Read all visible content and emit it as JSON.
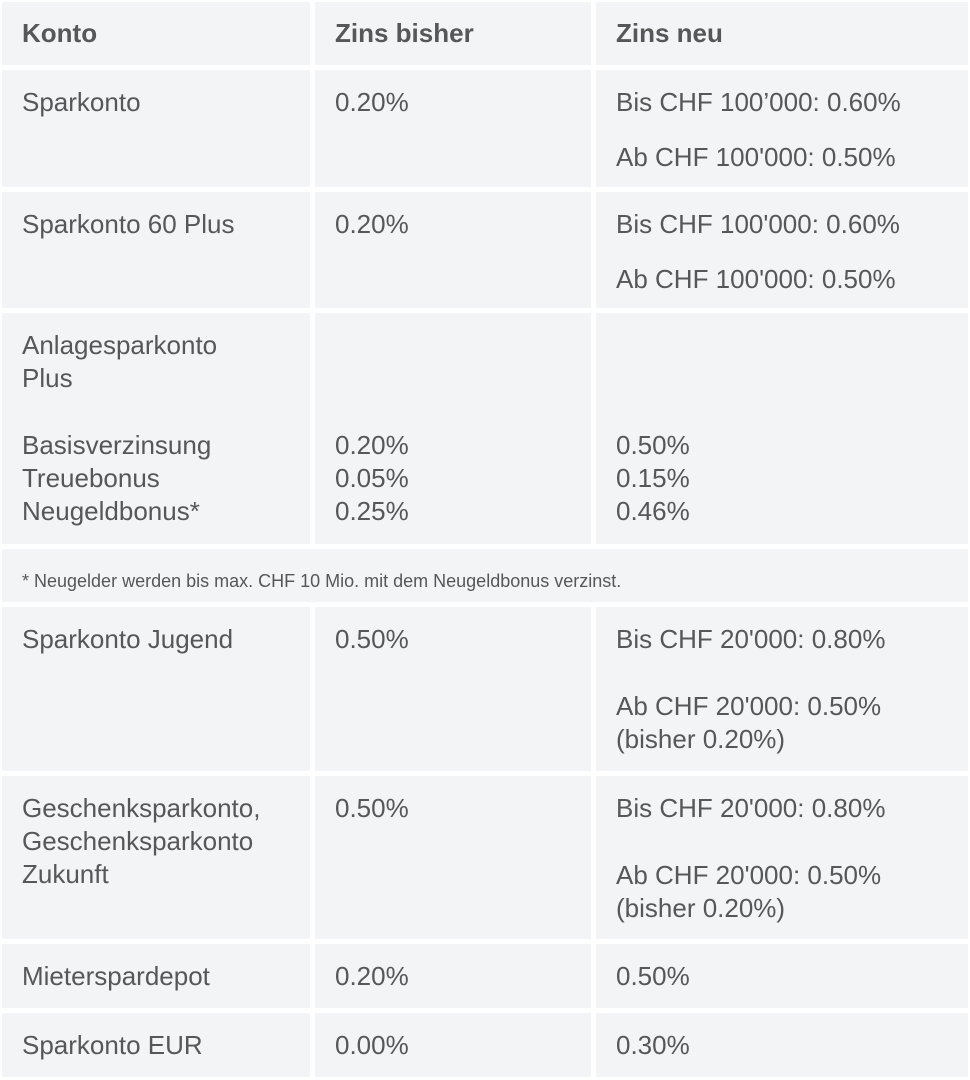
{
  "header": [
    "Konto",
    "Zins bisher",
    "Zins neu"
  ],
  "rows": [
    {
      "konto": [
        "Sparkonto"
      ],
      "bisher": [
        "0.20%"
      ],
      "neu": [
        "Bis CHF 100’000: 0.60%",
        "Ab CHF 100'000: 0.50%"
      ]
    },
    {
      "konto": [
        "Sparkonto 60 Plus"
      ],
      "bisher": [
        "0.20%"
      ],
      "neu": [
        "Bis CHF 100'000: 0.60%",
        "Ab CHF 100'000: 0.50%"
      ]
    },
    {
      "konto": [
        "Anlagesparkonto\nPlus",
        "Basisverzinsung\nTreuebonus\nNeugeldbonus*"
      ],
      "bisher": [
        "",
        "0.20%\n0.05%\n0.25%"
      ],
      "neu": [
        "",
        "0.50%\n0.15%\n0.46%"
      ]
    },
    {
      "konto": [
        "Sparkonto Jugend"
      ],
      "bisher": [
        "0.50%"
      ],
      "neu": [
        "Bis CHF 20'000: 0.80%",
        "Ab CHF 20'000: 0.50%\n(bisher 0.20%)"
      ]
    },
    {
      "konto": [
        "Geschenksparkonto,\nGeschenksparkonto\nZukunft"
      ],
      "bisher": [
        "0.50%"
      ],
      "neu": [
        "Bis CHF 20'000: 0.80%",
        "Ab CHF 20'000: 0.50%\n(bisher 0.20%)"
      ]
    },
    {
      "konto": [
        "Mieterspardepot"
      ],
      "bisher": [
        "0.20%"
      ],
      "neu": [
        "0.50%"
      ]
    },
    {
      "konto": [
        "Sparkonto EUR"
      ],
      "bisher": [
        "0.00%"
      ],
      "neu": [
        "0.30%"
      ]
    }
  ],
  "footnote": "* Neugelder werden bis max. CHF 10 Mio. mit dem Neugeldbonus verzinst."
}
